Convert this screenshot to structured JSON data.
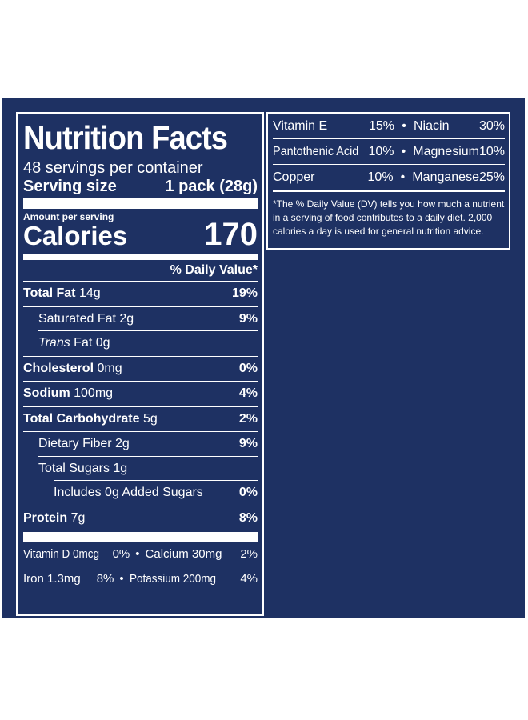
{
  "label": {
    "title": "Nutrition Facts",
    "servings_per_container": "48 servings per container",
    "serving_size_label": "Serving size",
    "serving_size_value": "1 pack (28g)",
    "amount_per_serving": "Amount per serving",
    "calories_label": "Calories",
    "calories_value": "170",
    "dv_header": "% Daily Value*",
    "nutrients": [
      {
        "name": "Total Fat",
        "amount": "14g",
        "dv": "19%"
      },
      {
        "name": "Saturated Fat",
        "amount": "2g",
        "dv": "9%"
      },
      {
        "name": "Trans",
        "name_suffix": "Fat",
        "amount": "0g",
        "dv": ""
      },
      {
        "name": "Cholesterol",
        "amount": "0mg",
        "dv": "0%"
      },
      {
        "name": "Sodium",
        "amount": "100mg",
        "dv": "4%"
      },
      {
        "name": "Total Carbohydrate",
        "amount": "5g",
        "dv": "2%"
      },
      {
        "name": "Dietary Fiber",
        "amount": "2g",
        "dv": "9%"
      },
      {
        "name": "Total Sugars",
        "amount": "1g",
        "dv": ""
      },
      {
        "name": "Includes 0g Added Sugars",
        "amount": "",
        "dv": "0%"
      },
      {
        "name": "Protein",
        "amount": "7g",
        "dv": "8%"
      }
    ],
    "vitamins_left": [
      {
        "name": "Vitamin D 0mcg",
        "dv": "0%"
      },
      {
        "name": "Calcium 30mg",
        "dv": "2%"
      },
      {
        "name": "Iron 1.3mg",
        "dv": "8%"
      },
      {
        "name": "Potassium 200mg",
        "dv": "4%"
      }
    ],
    "bullet": "•"
  },
  "right_panel": {
    "vitamins": [
      {
        "name1": "Vitamin E",
        "dv1": "15%",
        "name2": "Niacin",
        "dv2": "30%"
      },
      {
        "name1": "Pantothenic Acid",
        "dv1": "10%",
        "name2": "Magnesium",
        "dv2": "10%"
      },
      {
        "name1": "Copper",
        "dv1": "10%",
        "name2": "Manganese",
        "dv2": "25%"
      }
    ],
    "footnote": "*The % Daily Value (DV) tells you how much a nutrient in a serving of food contributes to a daily diet. 2,000 calories a day is used for general nutrition advice."
  },
  "colors": {
    "background": "#1e3163",
    "foreground": "#ffffff"
  }
}
